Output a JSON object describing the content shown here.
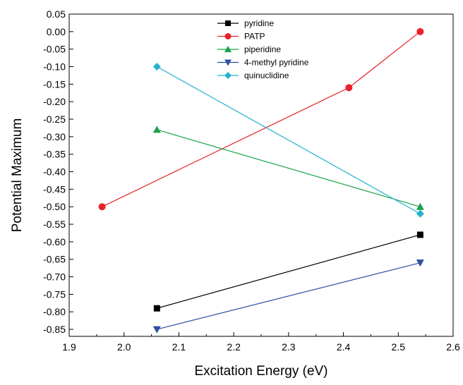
{
  "chart_data": {
    "type": "line",
    "title": "",
    "xlabel": "Excitation Energy (eV)",
    "ylabel": "Potential Maximum",
    "xlim": [
      1.9,
      2.6
    ],
    "ylim": [
      -0.87,
      0.05
    ],
    "x_ticks": [
      "1.9",
      "2.0",
      "2.1",
      "2.2",
      "2.3",
      "2.4",
      "2.5",
      "2.6"
    ],
    "y_ticks": [
      "0.05",
      "0.00",
      "-0.05",
      "-0.10",
      "-0.15",
      "-0.20",
      "-0.25",
      "-0.30",
      "-0.35",
      "-0.40",
      "-0.45",
      "-0.50",
      "-0.55",
      "-0.60",
      "-0.65",
      "-0.70",
      "-0.75",
      "-0.80",
      "-0.85"
    ],
    "grid": false,
    "legend_position": "top-center",
    "series": [
      {
        "name": "pyridine",
        "color": "#000000",
        "marker": "square",
        "x": [
          2.06,
          2.54
        ],
        "y": [
          -0.79,
          -0.58
        ]
      },
      {
        "name": "PATP",
        "color": "#e8212b",
        "marker": "circle",
        "x": [
          1.96,
          2.41,
          2.54
        ],
        "y": [
          -0.5,
          -0.16,
          0.0
        ]
      },
      {
        "name": "piperidine",
        "color": "#1aa24a",
        "marker": "triangle-up",
        "x": [
          2.06,
          2.54
        ],
        "y": [
          -0.28,
          -0.5
        ]
      },
      {
        "name": "4-methyl pyridine",
        "color": "#2e4fa3",
        "marker": "triangle-down",
        "x": [
          2.06,
          2.54
        ],
        "y": [
          -0.85,
          -0.66
        ]
      },
      {
        "name": "quinuclidine",
        "color": "#22b2cc",
        "marker": "diamond",
        "x": [
          2.06,
          2.54
        ],
        "y": [
          -0.1,
          -0.52
        ]
      }
    ]
  }
}
